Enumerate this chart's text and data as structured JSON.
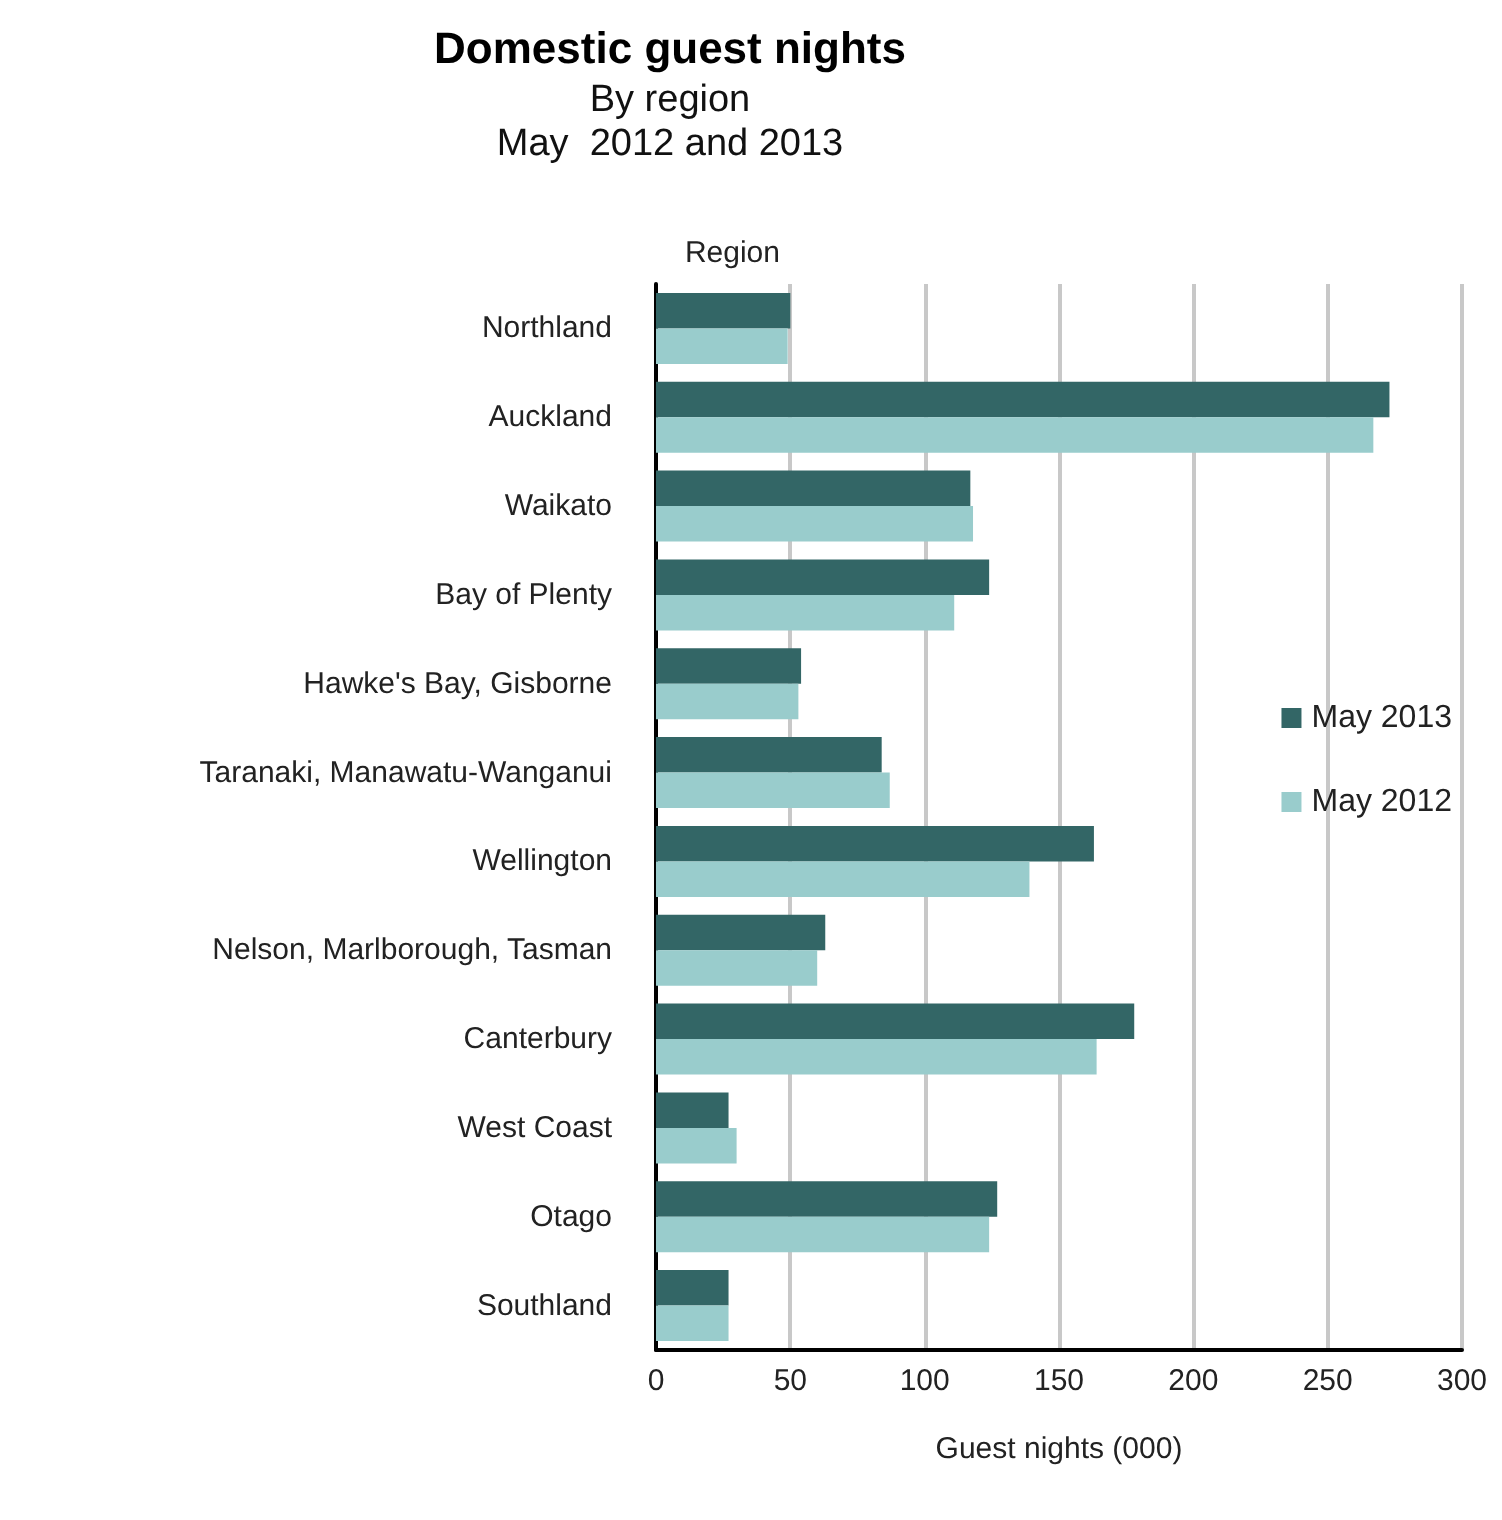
{
  "chart_data": {
    "type": "bar",
    "orientation": "horizontal",
    "title": "Domestic guest nights",
    "subtitle": "By region\nMay  2012 and 2013",
    "ylabel": "Region",
    "xlabel": "Guest nights (000)",
    "categories": [
      "Northland",
      "Auckland",
      "Waikato",
      "Bay of Plenty",
      "Hawke's Bay, Gisborne",
      "Taranaki, Manawatu-Wanganui",
      "Wellington",
      "Nelson, Marlborough, Tasman",
      "Canterbury",
      "West Coast",
      "Otago",
      "Southland"
    ],
    "series": [
      {
        "name": "May 2013",
        "color": "#336666",
        "values": [
          50,
          273,
          117,
          124,
          54,
          84,
          163,
          63,
          178,
          27,
          127,
          27
        ]
      },
      {
        "name": "May 2012",
        "color": "#99cccc",
        "values": [
          49,
          267,
          118,
          111,
          53,
          87,
          139,
          60,
          164,
          30,
          124,
          27
        ]
      }
    ],
    "xlim": [
      0,
      300
    ],
    "xticks": [
      0,
      50,
      100,
      150,
      200,
      250,
      300
    ],
    "grid": "x",
    "legend": "right"
  }
}
